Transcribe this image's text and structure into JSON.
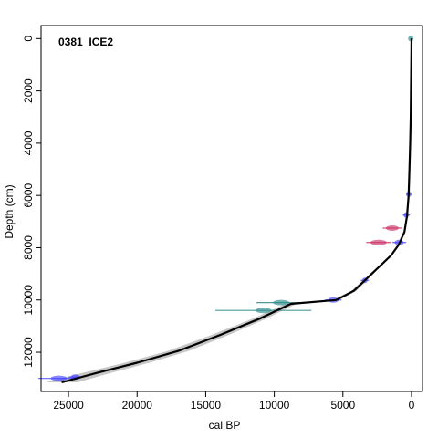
{
  "chart_data": {
    "type": "line",
    "title": "0381_ICE2",
    "xlabel": "cal BP",
    "ylabel": "Depth (cm)",
    "xlim": [
      27000,
      -800
    ],
    "ylim": [
      13500,
      -500
    ],
    "x_ticks": [
      25000,
      20000,
      15000,
      10000,
      5000,
      0
    ],
    "x_tick_labels": [
      "25000",
      "20000",
      "15000",
      "10000",
      "5000",
      "0"
    ],
    "y_ticks": [
      0,
      2000,
      4000,
      6000,
      8000,
      10000,
      12000
    ],
    "y_tick_labels": [
      "0",
      "2000",
      "4000",
      "6000",
      "8000",
      "10000",
      "12000"
    ],
    "series": [
      {
        "color": "#000000",
        "points": [
          {
            "x": 0,
            "y": 0
          },
          {
            "x": 20,
            "y": 1000
          },
          {
            "x": 40,
            "y": 2000
          },
          {
            "x": 60,
            "y": 3000
          },
          {
            "x": 100,
            "y": 4000
          },
          {
            "x": 150,
            "y": 5000
          },
          {
            "x": 210,
            "y": 6000
          },
          {
            "x": 330,
            "y": 6800
          },
          {
            "x": 520,
            "y": 7400
          },
          {
            "x": 950,
            "y": 7900
          },
          {
            "x": 1500,
            "y": 8300
          },
          {
            "x": 2300,
            "y": 8700
          },
          {
            "x": 3300,
            "y": 9200
          },
          {
            "x": 4200,
            "y": 9650
          },
          {
            "x": 5500,
            "y": 10000
          },
          {
            "x": 8800,
            "y": 10150
          },
          {
            "x": 11000,
            "y": 10700
          },
          {
            "x": 14000,
            "y": 11350
          },
          {
            "x": 17000,
            "y": 11950
          },
          {
            "x": 20000,
            "y": 12400
          },
          {
            "x": 23000,
            "y": 12800
          },
          {
            "x": 25500,
            "y": 13150
          }
        ]
      }
    ],
    "uncertainty_band_color": "#999999",
    "dates": [
      {
        "x": 50,
        "y": 0,
        "xerr": 60,
        "color": "#2e8b8b"
      },
      {
        "x": 200,
        "y": 5950,
        "xerr": 180,
        "color": "#4444ff"
      },
      {
        "x": 380,
        "y": 6750,
        "xerr": 250,
        "color": "#4444ff"
      },
      {
        "x": 1400,
        "y": 7250,
        "xerr": 700,
        "color": "#cc3366"
      },
      {
        "x": 2400,
        "y": 7800,
        "xerr": 900,
        "color": "#cc3366"
      },
      {
        "x": 900,
        "y": 7800,
        "xerr": 500,
        "color": "#4444ff"
      },
      {
        "x": 3400,
        "y": 9250,
        "xerr": 300,
        "color": "#4444ff"
      },
      {
        "x": 5700,
        "y": 10000,
        "xerr": 600,
        "color": "#4444ff"
      },
      {
        "x": 9500,
        "y": 10100,
        "xerr": 1800,
        "color": "#2e8b8b"
      },
      {
        "x": 10800,
        "y": 10400,
        "xerr": 3500,
        "color": "#2e8b8b"
      },
      {
        "x": 24500,
        "y": 12950,
        "xerr": 500,
        "color": "#4444ff"
      },
      {
        "x": 25700,
        "y": 13000,
        "xerr": 1500,
        "color": "#4444ff"
      }
    ],
    "grid": false
  }
}
